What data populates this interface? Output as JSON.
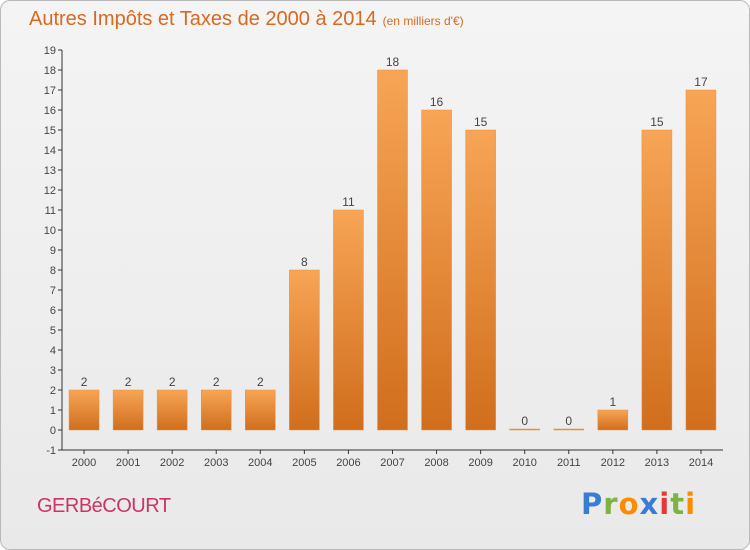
{
  "header": {
    "title": "Autres Impôts et Taxes de 2000 à 2014",
    "unit": "(en milliers d'€)"
  },
  "footer": {
    "commune": "GERBéCOURT",
    "logo": "Proxiti"
  },
  "colors": {
    "title": "#d9691f",
    "bar_top": "#f7a556",
    "bar_bottom": "#d06e1c",
    "commune": "#cc3366"
  },
  "chart_data": {
    "type": "bar",
    "title": "Autres Impôts et Taxes de 2000 à 2014",
    "subtitle": "(en milliers d'€)",
    "xlabel": "",
    "ylabel": "",
    "categories": [
      "2000",
      "2001",
      "2002",
      "2003",
      "2004",
      "2005",
      "2006",
      "2007",
      "2008",
      "2009",
      "2010",
      "2011",
      "2012",
      "2013",
      "2014"
    ],
    "values": [
      2,
      2,
      2,
      2,
      2,
      8,
      11,
      18,
      16,
      15,
      0,
      0,
      1,
      15,
      17
    ],
    "ylim": [
      -1,
      19
    ],
    "yticks": [
      -1,
      0,
      1,
      2,
      3,
      4,
      5,
      6,
      7,
      8,
      9,
      10,
      11,
      12,
      13,
      14,
      15,
      16,
      17,
      18,
      19
    ],
    "grid": false,
    "legend": "none"
  }
}
